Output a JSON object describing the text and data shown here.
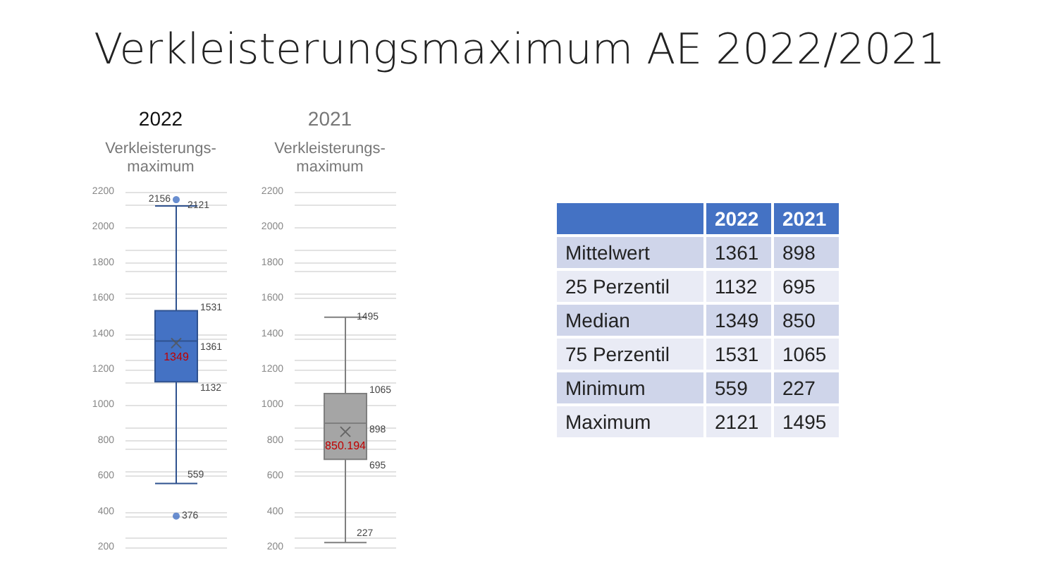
{
  "chart_data": [
    {
      "type": "box",
      "title": "2022",
      "subtitle": "Verkleisterungs-maximum",
      "categories": [
        null
      ],
      "color": "#4472c4",
      "ylim": [
        200,
        2200
      ],
      "yticks": [
        200,
        400,
        600,
        800,
        1000,
        1200,
        1400,
        1600,
        1800,
        2000,
        2200
      ],
      "grid": true,
      "annotations": [
        "2156",
        "2121",
        "1531",
        "1361",
        {
          "text": "1349",
          "y": 1349
        },
        "1132",
        "559",
        "376"
      ],
      "boxes": [
        {
          "low": 559,
          "q1": 1132,
          "median": 1361,
          "q3": 1531,
          "high": 2121,
          "mean": 1349,
          "outliers": [
            2156,
            376
          ]
        }
      ]
    },
    {
      "type": "box",
      "title": "2021",
      "subtitle": "Verkleisterungs-maximum",
      "categories": [
        null
      ],
      "color": "#a5a5a5",
      "ylim": [
        200,
        2200
      ],
      "yticks": [
        200,
        400,
        600,
        800,
        1000,
        1200,
        1400,
        1600,
        1800,
        2000,
        2200
      ],
      "grid": true,
      "annotations": [
        "1495",
        "1065",
        "898",
        "850.194",
        "695",
        "227"
      ],
      "boxes": [
        {
          "low": 227,
          "q1": 695,
          "median": 898,
          "q3": 1065,
          "high": 1495,
          "mean": 850.194
        }
      ]
    },
    {
      "type": "other",
      "title": "Verkleisterungsmaximum AE 2022/2021",
      "categories": [
        "Mittelwert",
        "25 Perzentil",
        "Median",
        "75 Perzentil",
        "Minimum",
        "Maximum"
      ],
      "data_labels": true,
      "series": [
        {
          "name": "2022",
          "values": [
            1361,
            1132,
            1349,
            1531,
            559,
            2121
          ],
          "colors": [
            "#cfd5ea",
            "#e9ebf5",
            "#cfd5ea",
            "#e9ebf5",
            "#cfd5ea",
            "#e9ebf5"
          ]
        },
        {
          "name": "2021",
          "values": [
            898,
            695,
            850,
            1065,
            227,
            1495
          ],
          "colors": [
            "#cfd5ea",
            "#e9ebf5",
            "#cfd5ea",
            "#e9ebf5",
            "#cfd5ea",
            "#e9ebf5"
          ]
        }
      ]
    }
  ]
}
